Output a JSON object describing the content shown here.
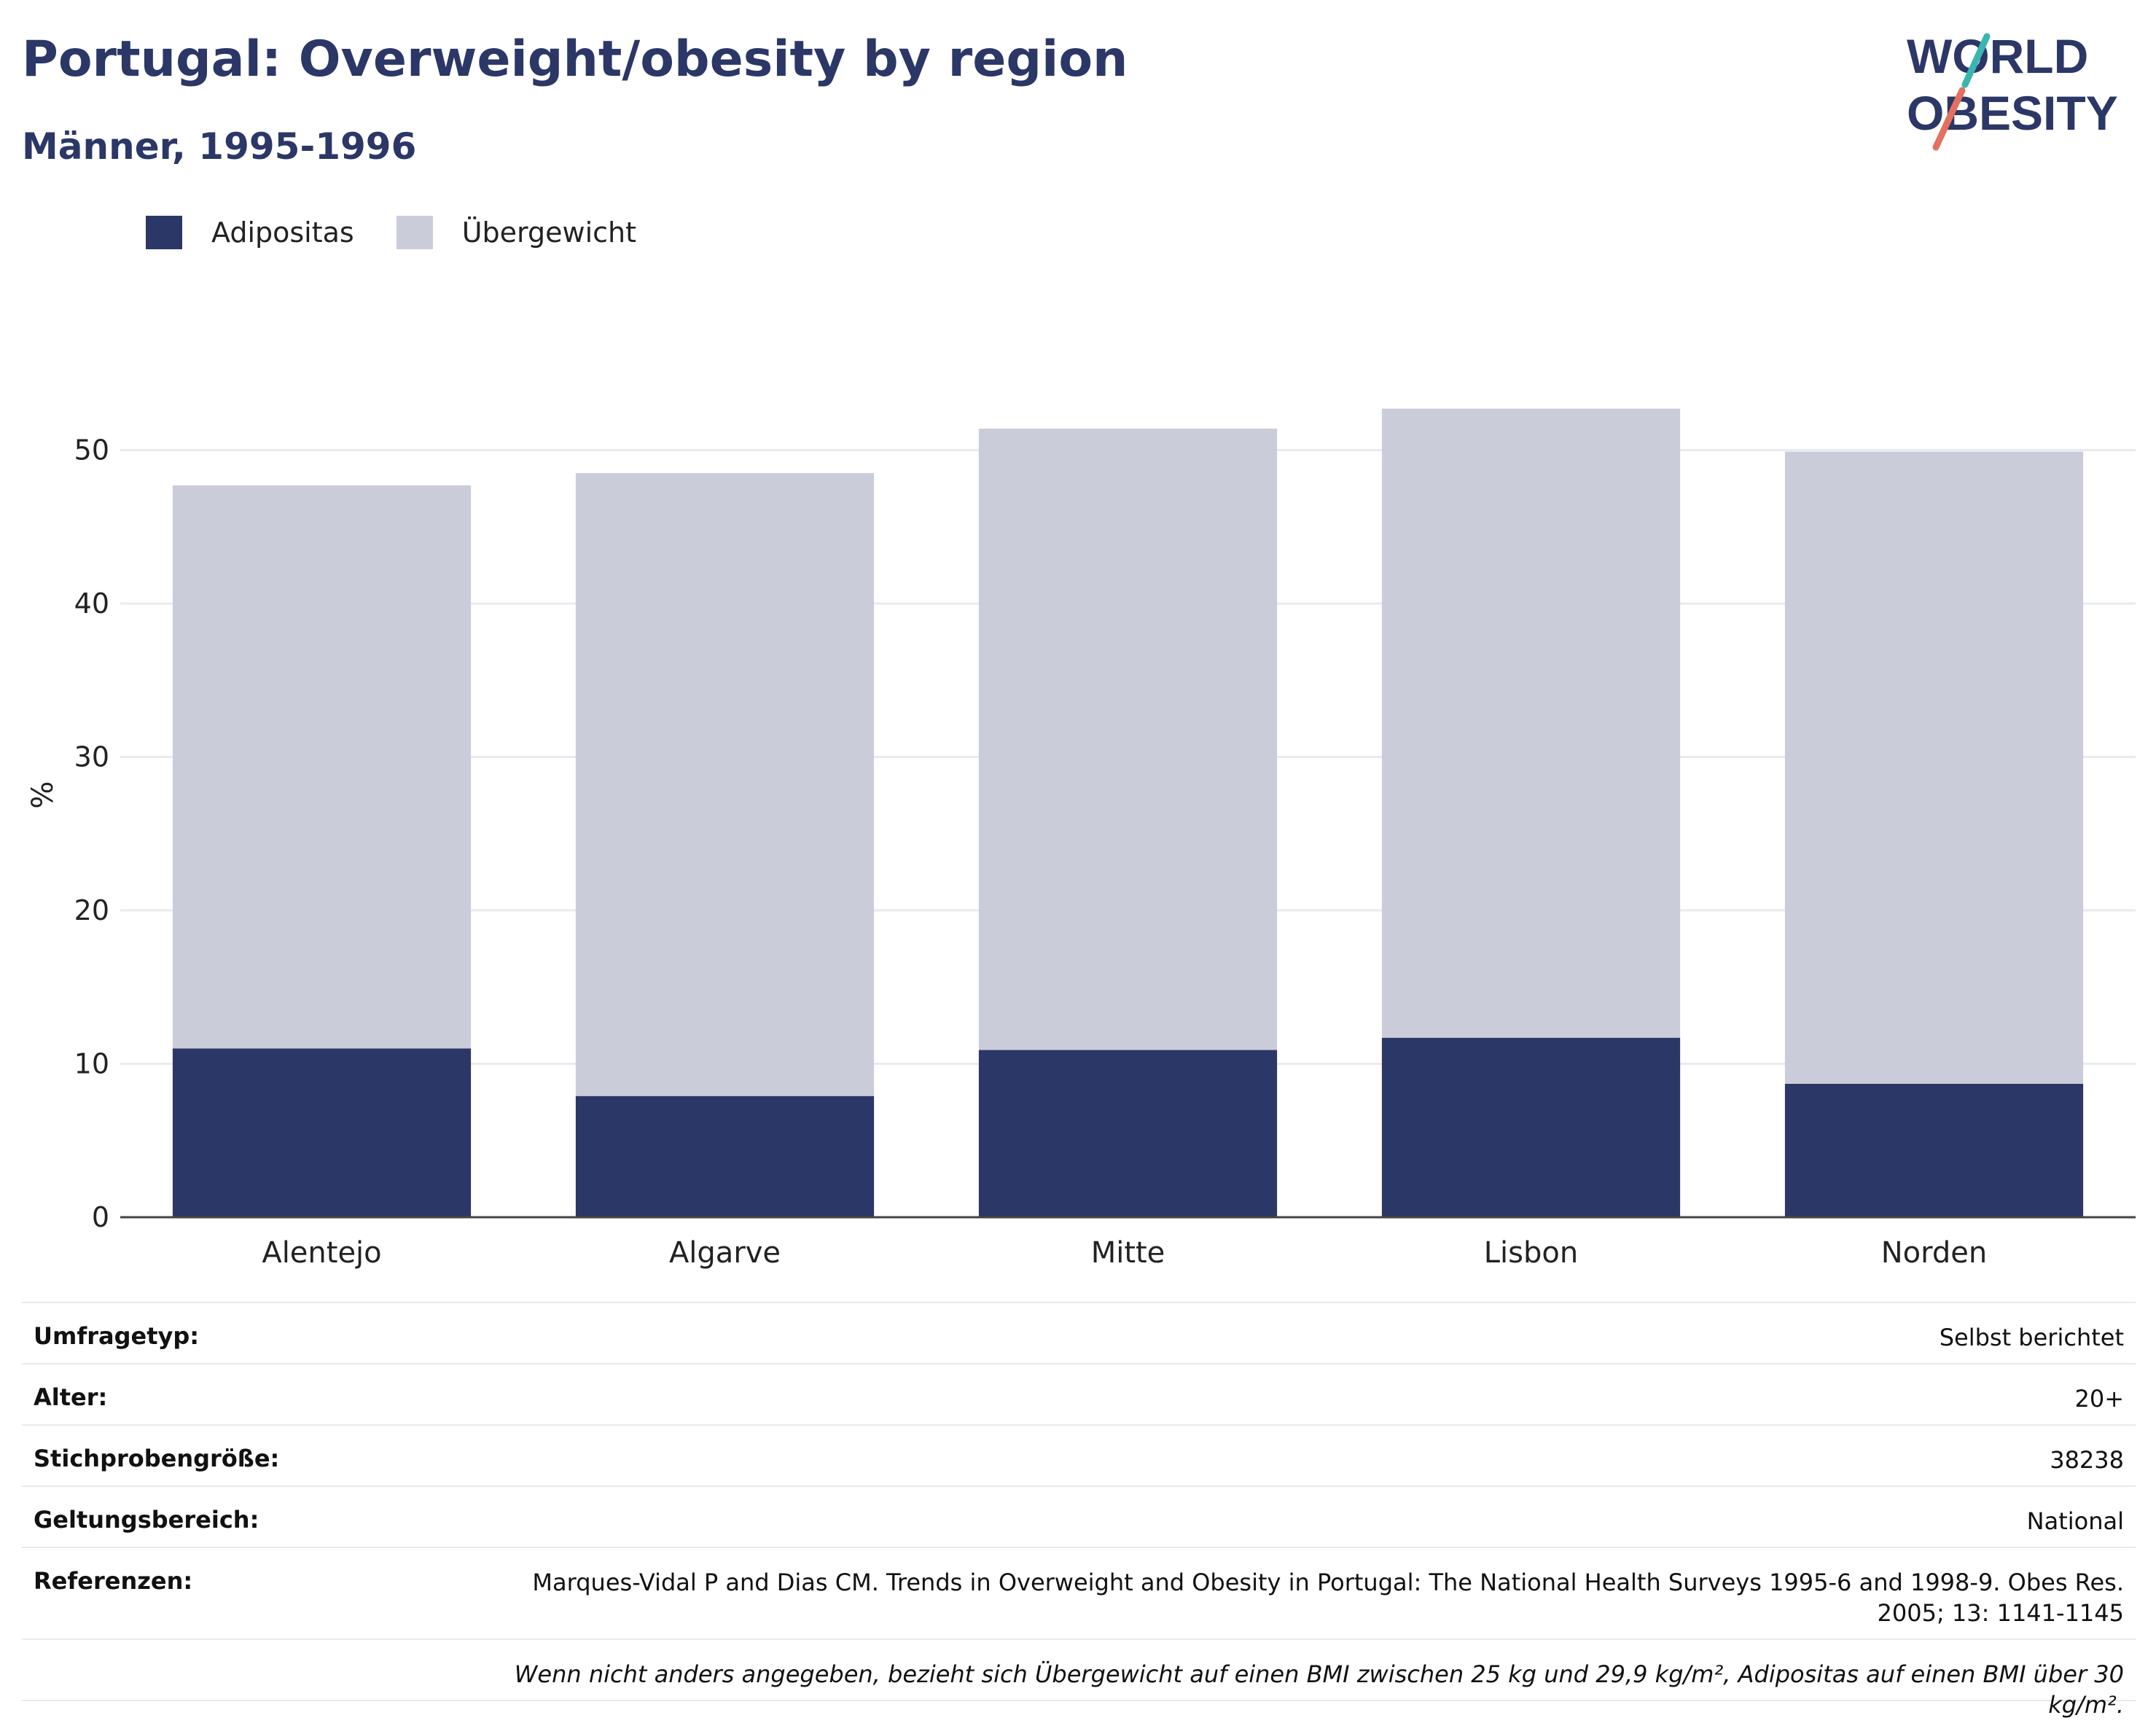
{
  "title": "Portugal: Overweight/obesity by region",
  "subtitle": "Männer, 1995-1996",
  "logo": {
    "line1": "WORLD",
    "line2": "OBESITY",
    "accent_teal": "#3ab5b0",
    "accent_red": "#e4705f",
    "text_color": "#2b3766"
  },
  "legend": [
    {
      "label": "Adipositas",
      "color": "#2b3766"
    },
    {
      "label": "Übergewicht",
      "color": "#cacdd9"
    }
  ],
  "chart_data": {
    "type": "bar",
    "stacked": true,
    "categories": [
      "Alentejo",
      "Algarve",
      "Mitte",
      "Lisbon",
      "Norden"
    ],
    "series": [
      {
        "name": "Adipositas",
        "color": "#2b3766",
        "values": [
          11.0,
          7.9,
          10.9,
          11.7,
          8.7
        ]
      },
      {
        "name": "Übergewicht",
        "color": "#cacdd9",
        "values": [
          36.7,
          40.6,
          40.5,
          41.0,
          41.2
        ]
      }
    ],
    "ylabel": "%",
    "ylim": [
      0,
      56
    ],
    "yticks": [
      0,
      10,
      20,
      30,
      40,
      50
    ],
    "grid": true,
    "legend_position": "top-left"
  },
  "meta": {
    "survey_type": {
      "key": "Umfragetyp:",
      "value": "Selbst berichtet"
    },
    "age": {
      "key": "Alter:",
      "value": "20+"
    },
    "sample_size": {
      "key": "Stichprobengröße:",
      "value": "38238"
    },
    "scope": {
      "key": "Geltungsbereich:",
      "value": "National"
    },
    "references": {
      "key": "Referenzen:",
      "value": "Marques-Vidal P and Dias CM. Trends in Overweight and Obesity in Portugal: The National Health Surveys 1995-6 and 1998-9. Obes Res. 2005; 13: 1141-1145"
    },
    "note": "Wenn nicht anders angegeben, bezieht sich Übergewicht auf einen BMI zwischen 25 kg und 29,9 kg/m², Adipositas auf einen BMI über 30 kg/m²."
  }
}
